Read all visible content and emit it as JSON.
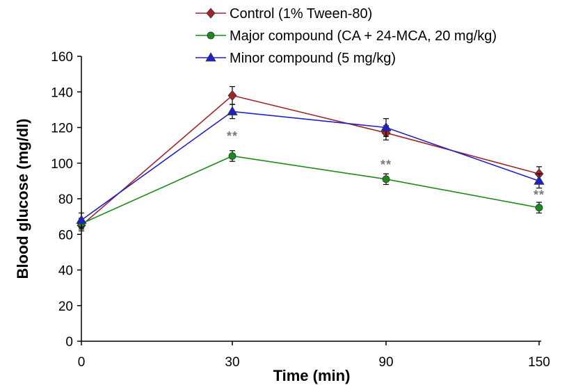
{
  "chart_data": {
    "type": "line",
    "title": "",
    "xlabel": "Time (min)",
    "ylabel": "Blood glucose (mg/dl)",
    "x": [
      0,
      30,
      90,
      150
    ],
    "x_tick_labels": [
      "0",
      "30",
      "90",
      "150"
    ],
    "ylim": [
      0,
      160
    ],
    "y_ticks": [
      0,
      20,
      40,
      60,
      80,
      100,
      120,
      140,
      160
    ],
    "grid": false,
    "legend_position": "top-center",
    "series": [
      {
        "name": "Control (1% Tween-80)",
        "color": "#a3242b",
        "marker": "diamond",
        "values": [
          65,
          138,
          117,
          94
        ],
        "errors": [
          3,
          5,
          4,
          4
        ]
      },
      {
        "name": "Major compound (CA + 24-MCA, 20 mg/kg)",
        "color": "#1b8a1b",
        "marker": "circle",
        "values": [
          66,
          104,
          91,
          75
        ],
        "errors": [
          3,
          3,
          3,
          3
        ]
      },
      {
        "name": "Minor compound (5 mg/kg)",
        "color": "#2020c8",
        "marker": "triangle",
        "values": [
          68,
          129,
          120,
          90
        ],
        "errors": [
          4,
          4,
          5,
          4
        ]
      }
    ],
    "annotations": [
      {
        "x": 30,
        "y": 116,
        "text": "**"
      },
      {
        "x": 90,
        "y": 100,
        "text": "**"
      },
      {
        "x": 150,
        "y": 83,
        "text": "**"
      }
    ]
  }
}
